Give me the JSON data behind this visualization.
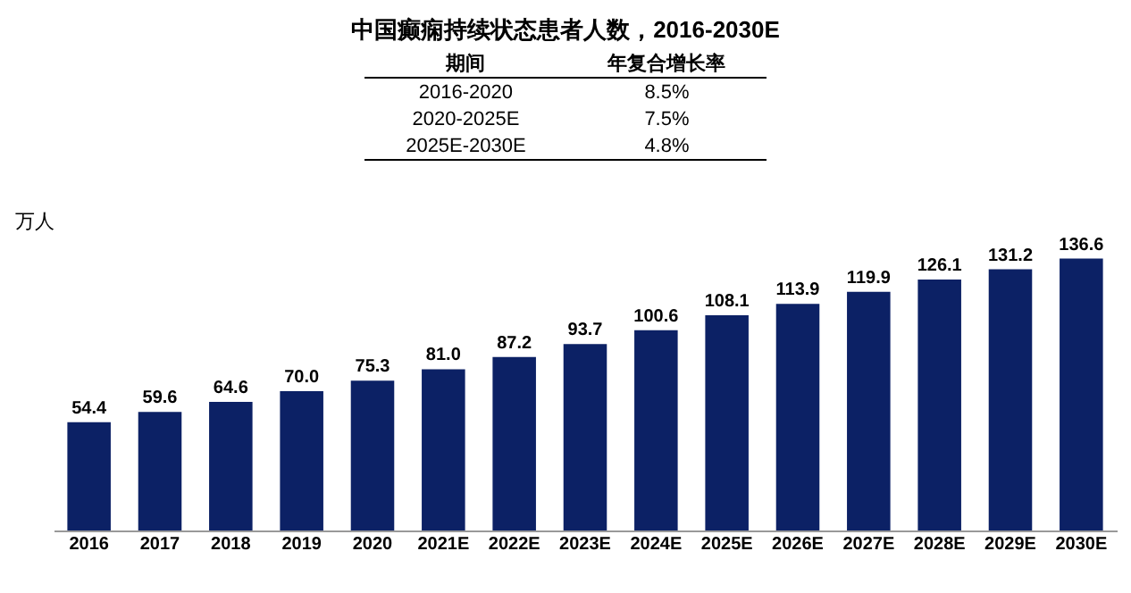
{
  "chart_data": {
    "type": "bar",
    "title": "中国癫痫持续状态患者人数，2016-2030E",
    "ylabel": "万人",
    "categories": [
      "2016",
      "2017",
      "2018",
      "2019",
      "2020",
      "2021E",
      "2022E",
      "2023E",
      "2024E",
      "2025E",
      "2026E",
      "2027E",
      "2028E",
      "2029E",
      "2030E"
    ],
    "values": [
      54.4,
      59.6,
      64.6,
      70.0,
      75.3,
      81.0,
      87.2,
      93.7,
      100.6,
      108.1,
      113.9,
      119.9,
      126.1,
      131.2,
      136.6
    ],
    "value_labels": [
      "54.4",
      "59.6",
      "64.6",
      "70.0",
      "75.3",
      "81.0",
      "87.2",
      "93.7",
      "100.6",
      "108.1",
      "113.9",
      "119.9",
      "126.1",
      "131.2",
      "136.6"
    ],
    "color": "#0c2165",
    "grid": false,
    "annotations": [
      "期间",
      "年复合增长率",
      "2016-2020",
      "8.5%",
      "2020-2025E",
      "7.5%",
      "2025E-2030E",
      "4.8%"
    ]
  }
}
